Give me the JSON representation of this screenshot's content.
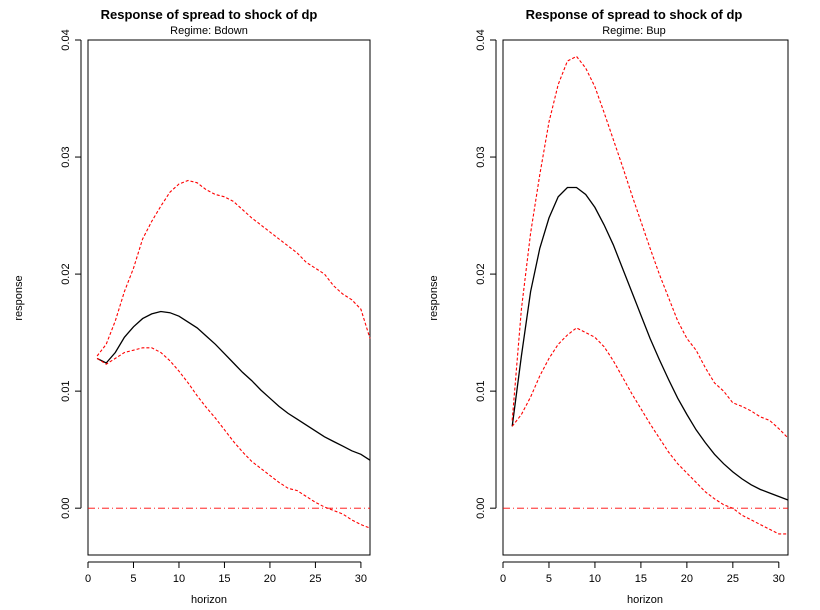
{
  "chart_data": [
    {
      "type": "line",
      "title": "Response of spread to shock of dp",
      "subtitle": "Regime: Bdown",
      "xlabel": "horizon",
      "ylabel": "response",
      "xlim": [
        0,
        31
      ],
      "ylim": [
        -0.004,
        0.04
      ],
      "x_ticks": [
        0,
        5,
        10,
        15,
        20,
        25,
        30
      ],
      "x_tick_labels": [
        "0",
        "5",
        "10",
        "15",
        "20",
        "25",
        "30"
      ],
      "y_ticks": [
        0.0,
        0.01,
        0.02,
        0.03,
        0.04
      ],
      "y_tick_labels": [
        "0.00",
        "0.01",
        "0.02",
        "0.03",
        "0.04"
      ],
      "x": [
        1,
        2,
        3,
        4,
        5,
        6,
        7,
        8,
        9,
        10,
        11,
        12,
        13,
        14,
        15,
        16,
        17,
        18,
        19,
        20,
        21,
        22,
        23,
        24,
        25,
        26,
        27,
        28,
        29,
        30,
        31
      ],
      "reference_line": {
        "y": 0,
        "color": "#ff0000"
      },
      "series": [
        {
          "role": "estimate",
          "color": "#000000",
          "dash": "solid",
          "values": [
            0.0128,
            0.0124,
            0.0133,
            0.0146,
            0.0155,
            0.0162,
            0.0166,
            0.0168,
            0.0167,
            0.0164,
            0.0159,
            0.0154,
            0.0147,
            0.014,
            0.0132,
            0.0124,
            0.0116,
            0.0109,
            0.0101,
            0.0094,
            0.0087,
            0.0081,
            0.0076,
            0.0071,
            0.0066,
            0.0061,
            0.0057,
            0.0053,
            0.0049,
            0.0046,
            0.0041
          ]
        },
        {
          "role": "upper-band",
          "color": "#ff0000",
          "dash": "dashed",
          "values": [
            0.013,
            0.014,
            0.016,
            0.0185,
            0.0205,
            0.023,
            0.0245,
            0.0258,
            0.027,
            0.0277,
            0.028,
            0.0278,
            0.0272,
            0.0268,
            0.0266,
            0.0262,
            0.0255,
            0.0248,
            0.0242,
            0.0236,
            0.023,
            0.0224,
            0.0218,
            0.021,
            0.0205,
            0.02,
            0.019,
            0.0183,
            0.0178,
            0.017,
            0.0145
          ]
        },
        {
          "role": "lower-band",
          "color": "#ff0000",
          "dash": "dashed",
          "values": [
            0.0128,
            0.0123,
            0.0128,
            0.0133,
            0.0135,
            0.0137,
            0.0137,
            0.0133,
            0.0126,
            0.0117,
            0.0107,
            0.0096,
            0.0086,
            0.0077,
            0.0067,
            0.0057,
            0.0048,
            0.004,
            0.0034,
            0.0028,
            0.0022,
            0.0017,
            0.0015,
            0.001,
            0.0005,
            0.0001,
            -0.0002,
            -0.0005,
            -0.001,
            -0.0014,
            -0.0017
          ]
        }
      ]
    },
    {
      "type": "line",
      "title": "Response of spread to shock of dp",
      "subtitle": "Regime: Bup",
      "xlabel": "horizon",
      "ylabel": "response",
      "xlim": [
        0,
        31
      ],
      "ylim": [
        -0.004,
        0.04
      ],
      "x_ticks": [
        0,
        5,
        10,
        15,
        20,
        25,
        30
      ],
      "x_tick_labels": [
        "0",
        "5",
        "10",
        "15",
        "20",
        "25",
        "30"
      ],
      "y_ticks": [
        0.0,
        0.01,
        0.02,
        0.03,
        0.04
      ],
      "y_tick_labels": [
        "0.00",
        "0.01",
        "0.02",
        "0.03",
        "0.04"
      ],
      "x": [
        1,
        2,
        3,
        4,
        5,
        6,
        7,
        8,
        9,
        10,
        11,
        12,
        13,
        14,
        15,
        16,
        17,
        18,
        19,
        20,
        21,
        22,
        23,
        24,
        25,
        26,
        27,
        28,
        29,
        30,
        31
      ],
      "reference_line": {
        "y": 0,
        "color": "#ff0000"
      },
      "series": [
        {
          "role": "estimate",
          "color": "#000000",
          "dash": "solid",
          "values": [
            0.007,
            0.013,
            0.0185,
            0.0222,
            0.0248,
            0.0266,
            0.0274,
            0.0274,
            0.0268,
            0.0257,
            0.0242,
            0.0225,
            0.0205,
            0.0185,
            0.0165,
            0.0145,
            0.0127,
            0.011,
            0.0094,
            0.008,
            0.0067,
            0.0056,
            0.0046,
            0.0038,
            0.0031,
            0.0025,
            0.002,
            0.0016,
            0.0013,
            0.001,
            0.0007
          ]
        },
        {
          "role": "upper-band",
          "color": "#ff0000",
          "dash": "dashed",
          "values": [
            0.0075,
            0.017,
            0.0235,
            0.0285,
            0.033,
            0.0362,
            0.0382,
            0.0386,
            0.0376,
            0.036,
            0.0338,
            0.0315,
            0.0292,
            0.0268,
            0.0245,
            0.0222,
            0.02,
            0.018,
            0.016,
            0.0145,
            0.0135,
            0.012,
            0.0107,
            0.01,
            0.009,
            0.0087,
            0.0083,
            0.0078,
            0.0075,
            0.0068,
            0.006
          ]
        },
        {
          "role": "lower-band",
          "color": "#ff0000",
          "dash": "dashed",
          "values": [
            0.007,
            0.008,
            0.0095,
            0.0113,
            0.0128,
            0.014,
            0.0148,
            0.0154,
            0.015,
            0.0146,
            0.0138,
            0.0126,
            0.0112,
            0.0098,
            0.0085,
            0.0072,
            0.006,
            0.0048,
            0.0038,
            0.003,
            0.0022,
            0.0014,
            0.0008,
            0.0003,
            0.0,
            -0.0006,
            -0.001,
            -0.0014,
            -0.0018,
            -0.0022,
            -0.0022
          ]
        }
      ]
    }
  ]
}
